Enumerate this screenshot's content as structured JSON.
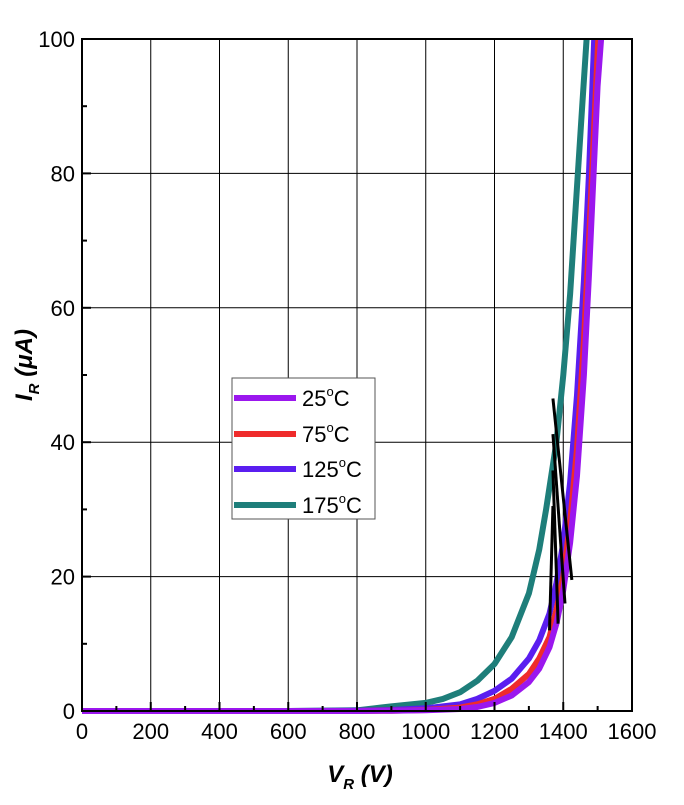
{
  "chart_data": {
    "type": "line",
    "title": "",
    "xlabel": {
      "main": "V",
      "sub": "R",
      "unit": "(V)"
    },
    "ylabel": {
      "main": "I",
      "sub": "R",
      "unit": "(μA)"
    },
    "xlim": [
      0,
      1600
    ],
    "ylim": [
      0,
      100
    ],
    "x_ticks": [
      "0",
      "200",
      "400",
      "600",
      "800",
      "1000",
      "1200",
      "1400",
      "1600"
    ],
    "y_ticks": [
      "0",
      "20",
      "40",
      "60",
      "80",
      "100"
    ],
    "grid": true,
    "legend_position": "center-left",
    "series": [
      {
        "name": "25°C",
        "label_main": "25",
        "label_sup": "o",
        "label_unit": "C",
        "color": "#9b17ee",
        "x": [
          0,
          200,
          400,
          600,
          800,
          900,
          1000,
          1100,
          1150,
          1200,
          1250,
          1300,
          1330,
          1360,
          1380,
          1400,
          1420,
          1440,
          1460,
          1475,
          1490,
          1500,
          1510
        ],
        "y": [
          0,
          0,
          0,
          0,
          0,
          0.05,
          0.1,
          0.3,
          0.6,
          1.2,
          2.3,
          4.3,
          6.3,
          9.5,
          13,
          18,
          25,
          35,
          50,
          65,
          82,
          93,
          100
        ]
      },
      {
        "name": "75°C",
        "label_main": "75",
        "label_sup": "o",
        "label_unit": "C",
        "color": "#ef2b2b",
        "x": [
          0,
          200,
          400,
          600,
          800,
          900,
          1000,
          1100,
          1150,
          1200,
          1250,
          1300,
          1330,
          1360,
          1380,
          1400,
          1420,
          1440,
          1460,
          1475,
          1490,
          1502
        ],
        "y": [
          0,
          0,
          0,
          0,
          0,
          0.05,
          0.15,
          0.5,
          1.0,
          1.8,
          3.3,
          5.5,
          7.8,
          11,
          15,
          20,
          28,
          39,
          55,
          70,
          87,
          100
        ]
      },
      {
        "name": "125°C",
        "label_main": "125",
        "label_sup": "o",
        "label_unit": "C",
        "color": "#5a1ef0",
        "x": [
          0,
          200,
          400,
          600,
          800,
          900,
          1000,
          1100,
          1150,
          1200,
          1250,
          1300,
          1330,
          1360,
          1380,
          1400,
          1420,
          1440,
          1460,
          1475,
          1490
        ],
        "y": [
          0,
          0,
          0,
          0,
          0.05,
          0.15,
          0.4,
          1.0,
          1.8,
          3.0,
          4.8,
          7.8,
          10.5,
          14.5,
          19,
          25,
          34,
          47,
          64,
          80,
          100
        ]
      },
      {
        "name": "175°C",
        "label_main": "175",
        "label_sup": "o",
        "label_unit": "C",
        "color": "#1e7e7a",
        "x": [
          0,
          200,
          400,
          600,
          800,
          850,
          900,
          1000,
          1050,
          1100,
          1150,
          1200,
          1250,
          1300,
          1330,
          1350,
          1380,
          1400,
          1420,
          1440,
          1455,
          1468
        ],
        "y": [
          0,
          0,
          0,
          0,
          0.1,
          0.4,
          0.7,
          1.2,
          1.8,
          2.8,
          4.5,
          7,
          11,
          17.5,
          24,
          30,
          40,
          50,
          62,
          78,
          90,
          100
        ]
      }
    ],
    "annotations": [
      {
        "series": "25°C",
        "from": [
          1370,
          46.5
        ],
        "to": [
          1425,
          19.5
        ]
      },
      {
        "series": "75°C",
        "from": [
          1370,
          41.2
        ],
        "to": [
          1405,
          16
        ]
      },
      {
        "series": "125°C",
        "from": [
          1370,
          35.8
        ],
        "to": [
          1385,
          13
        ]
      },
      {
        "series": "175°C",
        "from": [
          1370,
          30.5
        ],
        "to": [
          1360,
          12
        ]
      }
    ]
  }
}
